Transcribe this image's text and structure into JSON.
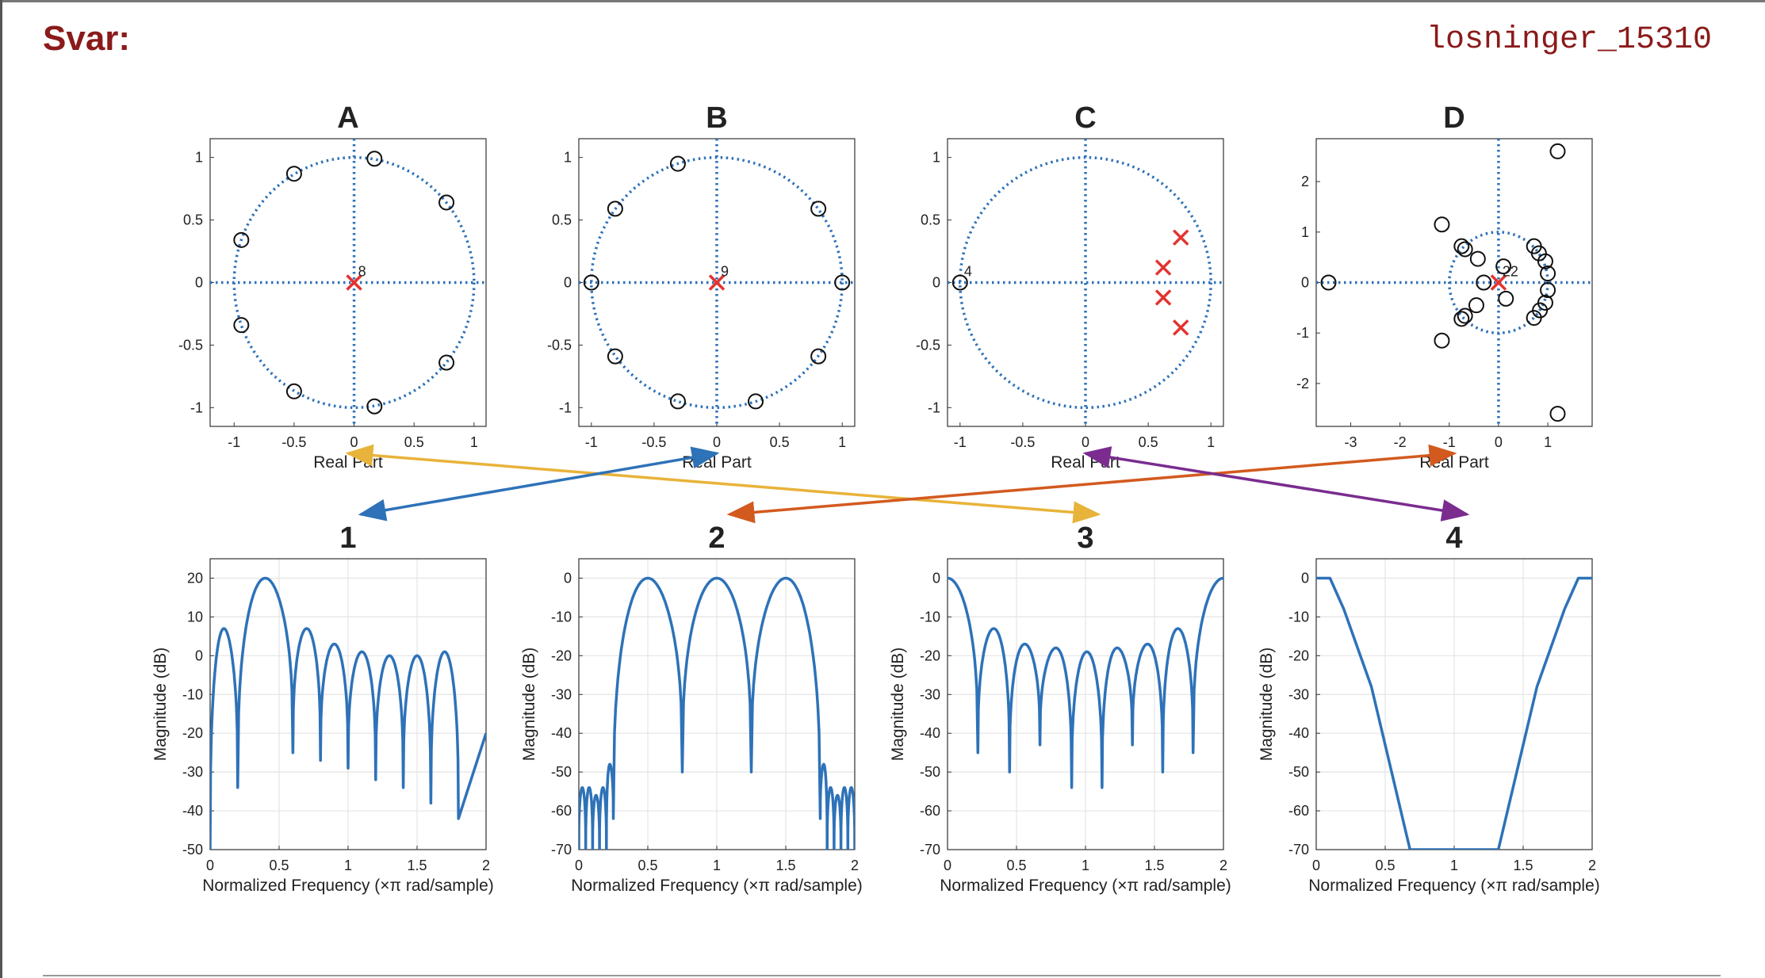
{
  "page": {
    "heading": "Svar:",
    "code_id": "losninger_15310"
  },
  "colors": {
    "curve": "#2e72b8",
    "unit_circle": "#2e72b8",
    "pole": "#e3332f",
    "zero": "#111111",
    "grid": "#e4e4e4",
    "arrow_a3": "#e8b33a",
    "arrow_b1": "#2e72b8",
    "arrow_d2": "#d35a1f",
    "arrow_c4": "#7a2c8f"
  },
  "chart_data": [
    {
      "id": "A",
      "type": "scatter",
      "title": "A",
      "xlabel": "Real Part",
      "ylabel": "",
      "xlim": [
        -1.2,
        1.1
      ],
      "ylim": [
        -1.15,
        1.15
      ],
      "xticks": [
        -1,
        -0.5,
        0,
        0.5,
        1
      ],
      "yticks": [
        -1,
        -0.5,
        0,
        0.5,
        1
      ],
      "xtick_labels": [
        "-1",
        "-0.5",
        "0",
        "0.5",
        "1"
      ],
      "ytick_labels": [
        "-1",
        "-0.5",
        "0",
        "0.5",
        "1"
      ],
      "unit_circle": true,
      "zeros": [
        [
          0.17,
          0.99
        ],
        [
          0.77,
          0.64
        ],
        [
          -0.5,
          0.87
        ],
        [
          -0.94,
          0.34
        ],
        [
          -0.94,
          -0.34
        ],
        [
          -0.5,
          -0.87
        ],
        [
          0.77,
          -0.64
        ],
        [
          0.17,
          -0.99
        ]
      ],
      "poles": [
        [
          0,
          0
        ]
      ],
      "multiplicity_label": {
        "x": 0,
        "y": 0,
        "text": "8"
      }
    },
    {
      "id": "B",
      "type": "scatter",
      "title": "B",
      "xlabel": "Real Part",
      "ylabel": "",
      "xlim": [
        -1.1,
        1.1
      ],
      "ylim": [
        -1.15,
        1.15
      ],
      "xticks": [
        -1,
        -0.5,
        0,
        0.5,
        1
      ],
      "yticks": [
        -1,
        -0.5,
        0,
        0.5,
        1
      ],
      "xtick_labels": [
        "-1",
        "-0.5",
        "0",
        "0.5",
        "1"
      ],
      "ytick_labels": [
        "-1",
        "-0.5",
        "0",
        "0.5",
        "1"
      ],
      "unit_circle": true,
      "zeros": [
        [
          1,
          0
        ],
        [
          0.81,
          0.59
        ],
        [
          -0.31,
          0.95
        ],
        [
          -0.81,
          0.59
        ],
        [
          -1,
          0
        ],
        [
          -0.81,
          -0.59
        ],
        [
          -0.31,
          -0.95
        ],
        [
          0.31,
          -0.95
        ],
        [
          0.81,
          -0.59
        ]
      ],
      "poles": [
        [
          0,
          0
        ]
      ],
      "multiplicity_label": {
        "x": 0,
        "y": 0,
        "text": "9"
      }
    },
    {
      "id": "C",
      "type": "scatter",
      "title": "C",
      "xlabel": "Real Part",
      "ylabel": "",
      "xlim": [
        -1.1,
        1.1
      ],
      "ylim": [
        -1.15,
        1.15
      ],
      "xticks": [
        -1,
        -0.5,
        0,
        0.5,
        1
      ],
      "yticks": [
        -1,
        -0.5,
        0,
        0.5,
        1
      ],
      "xtick_labels": [
        "-1",
        "-0.5",
        "0",
        "0.5",
        "1"
      ],
      "ytick_labels": [
        "-1",
        "-0.5",
        "0",
        "0.5",
        "1"
      ],
      "unit_circle": true,
      "zeros": [
        [
          -1,
          0
        ]
      ],
      "poles": [
        [
          0.76,
          0.36
        ],
        [
          0.62,
          0.12
        ],
        [
          0.62,
          -0.12
        ],
        [
          0.76,
          -0.36
        ]
      ],
      "multiplicity_label": {
        "x": -1,
        "y": 0,
        "text": "4"
      }
    },
    {
      "id": "D",
      "type": "scatter",
      "title": "D",
      "xlabel": "Real Part",
      "ylabel": "",
      "xlim": [
        -3.7,
        1.9
      ],
      "ylim": [
        -2.85,
        2.85
      ],
      "xticks": [
        -3,
        -2,
        -1,
        0,
        1
      ],
      "yticks": [
        -2,
        -1,
        0,
        1,
        2
      ],
      "xtick_labels": [
        "-3",
        "-2",
        "-1",
        "0",
        "1"
      ],
      "ytick_labels": [
        "-2",
        "-1",
        "0",
        "1",
        "2"
      ],
      "unit_circle": true,
      "zeros": [
        [
          1.2,
          2.6
        ],
        [
          -1.15,
          1.15
        ],
        [
          -0.75,
          0.72
        ],
        [
          -0.68,
          0.66
        ],
        [
          -0.42,
          0.47
        ],
        [
          -0.3,
          0
        ],
        [
          0.1,
          0.32
        ],
        [
          0.72,
          0.72
        ],
        [
          0.82,
          0.58
        ],
        [
          0.95,
          0.42
        ],
        [
          1.0,
          0.18
        ],
        [
          1.0,
          -0.15
        ],
        [
          0.95,
          -0.4
        ],
        [
          0.84,
          -0.55
        ],
        [
          0.72,
          -0.7
        ],
        [
          0.15,
          -0.32
        ],
        [
          -0.45,
          -0.45
        ],
        [
          -0.68,
          -0.66
        ],
        [
          -0.75,
          -0.72
        ],
        [
          -1.15,
          -1.15
        ],
        [
          1.2,
          -2.6
        ],
        [
          -3.45,
          0
        ]
      ],
      "poles": [
        [
          0,
          0
        ]
      ],
      "multiplicity_label": {
        "x": 0,
        "y": 0,
        "text": "22"
      }
    },
    {
      "id": "1",
      "type": "line",
      "title": "1",
      "xlabel": "Normalized Frequency (×π rad/sample)",
      "ylabel": "Magnitude (dB)",
      "xlim": [
        0,
        2
      ],
      "ylim": [
        -50,
        25
      ],
      "xticks": [
        0,
        0.5,
        1,
        1.5,
        2
      ],
      "yticks": [
        -50,
        -40,
        -30,
        -20,
        -10,
        0,
        10,
        20
      ],
      "xtick_labels": [
        "0",
        "0.5",
        "1",
        "1.5",
        "2"
      ],
      "ytick_labels": [
        "-50",
        "-40",
        "-30",
        "-20",
        "-10",
        "0",
        "10",
        "20"
      ],
      "nulls": [
        0,
        0.2,
        0.6,
        0.8,
        1.0,
        1.2,
        1.4,
        1.6,
        1.8
      ],
      "null_depths": [
        -50,
        -34,
        -25,
        -27,
        -29,
        -32,
        -34,
        -38,
        -42
      ],
      "peaks": [
        7,
        20,
        7,
        3,
        1,
        0,
        0,
        1,
        3
      ],
      "end_value": -20
    },
    {
      "id": "2",
      "type": "line",
      "title": "2",
      "xlabel": "Normalized Frequency (×π rad/sample)",
      "ylabel": "Magnitude (dB)",
      "xlim": [
        0,
        2
      ],
      "ylim": [
        -70,
        5
      ],
      "xticks": [
        0,
        0.5,
        1,
        1.5,
        2
      ],
      "yticks": [
        -70,
        -60,
        -50,
        -40,
        -30,
        -20,
        -10,
        0
      ],
      "xtick_labels": [
        "0",
        "0.5",
        "1",
        "1.5",
        "2"
      ],
      "ytick_labels": [
        "-70",
        "-60",
        "-50",
        "-40",
        "-30",
        "-20",
        "-10",
        "0"
      ],
      "nulls": [
        0.0,
        0.05,
        0.1,
        0.15,
        0.2,
        0.25,
        0.75,
        1.25,
        1.75,
        1.8,
        1.85,
        1.9,
        1.95,
        2.0
      ],
      "null_depths": [
        -70,
        -70,
        -70,
        -70,
        -70,
        -62,
        -50,
        -50,
        -62,
        -70,
        -70,
        -70,
        -70,
        -70
      ],
      "peaks": [
        -54,
        -54,
        -56,
        -54,
        -48,
        0,
        0,
        0,
        -48,
        -54,
        -56,
        -54,
        -54
      ]
    },
    {
      "id": "3",
      "type": "line",
      "title": "3",
      "xlabel": "Normalized Frequency (×π rad/sample)",
      "ylabel": "Magnitude (dB)",
      "xlim": [
        0,
        2
      ],
      "ylim": [
        -70,
        5
      ],
      "xticks": [
        0,
        0.5,
        1,
        1.5,
        2
      ],
      "yticks": [
        -70,
        -60,
        -50,
        -40,
        -30,
        -20,
        -10,
        0
      ],
      "xtick_labels": [
        "0",
        "0.5",
        "1",
        "1.5",
        "2"
      ],
      "ytick_labels": [
        "-70",
        "-60",
        "-50",
        "-40",
        "-30",
        "-20",
        "-10",
        "0"
      ],
      "nulls": [
        -0.22,
        0.22,
        0.45,
        0.67,
        0.9,
        1.12,
        1.34,
        1.56,
        1.78,
        2.22
      ],
      "null_depths": [
        -45,
        -45,
        -50,
        -43,
        -54,
        -54,
        -43,
        -50,
        -45,
        -45
      ],
      "peaks": [
        0,
        -13,
        -17,
        -18,
        -19,
        -18,
        -17,
        -13,
        0
      ]
    },
    {
      "id": "4",
      "type": "line",
      "title": "4",
      "xlabel": "Normalized Frequency (×π rad/sample)",
      "ylabel": "Magnitude (dB)",
      "xlim": [
        0,
        2
      ],
      "ylim": [
        -70,
        5
      ],
      "xticks": [
        0,
        0.5,
        1,
        1.5,
        2
      ],
      "yticks": [
        -70,
        -60,
        -50,
        -40,
        -30,
        -20,
        -10,
        0
      ],
      "xtick_labels": [
        "0",
        "0.5",
        "1",
        "1.5",
        "2"
      ],
      "ytick_labels": [
        "-70",
        "-60",
        "-50",
        "-40",
        "-30",
        "-20",
        "-10",
        "0"
      ],
      "points": [
        [
          0,
          0
        ],
        [
          0.1,
          0
        ],
        [
          0.2,
          -8
        ],
        [
          0.4,
          -28
        ],
        [
          0.68,
          -70
        ],
        [
          1.32,
          -70
        ],
        [
          1.6,
          -28
        ],
        [
          1.8,
          -8
        ],
        [
          1.9,
          0
        ],
        [
          2,
          0
        ]
      ]
    }
  ],
  "arrows": [
    {
      "from": "A",
      "to": "3",
      "color_key": "arrow_a3"
    },
    {
      "from": "B",
      "to": "1",
      "color_key": "arrow_b1"
    },
    {
      "from": "D",
      "to": "2",
      "color_key": "arrow_d2"
    },
    {
      "from": "C",
      "to": "4",
      "color_key": "arrow_c4"
    }
  ]
}
